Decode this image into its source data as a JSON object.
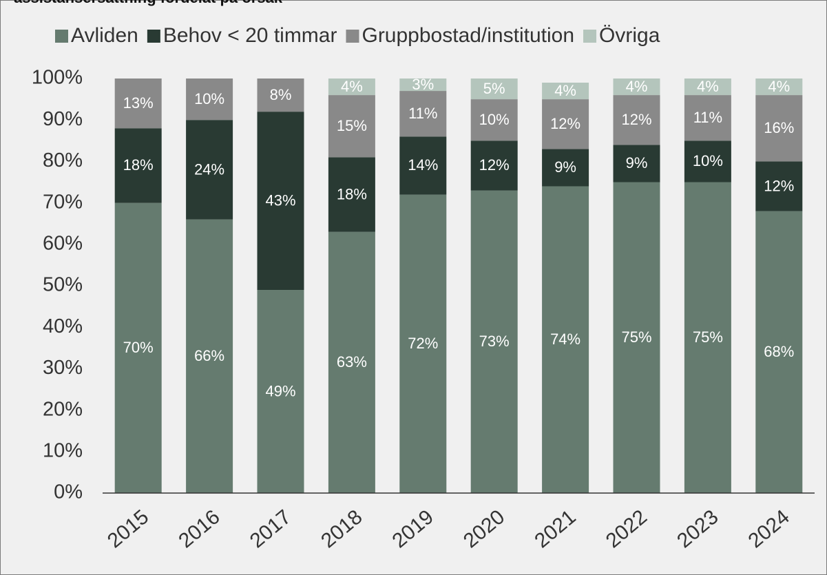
{
  "chart_data": {
    "type": "stacked_bar",
    "title": "assistansersättning fördelat på orsak",
    "categories": [
      "2015",
      "2016",
      "2017",
      "2018",
      "2019",
      "2020",
      "2021",
      "2022",
      "2023",
      "2024"
    ],
    "series": [
      {
        "name": "Avliden",
        "color": "#657b6f",
        "values": [
          70,
          66,
          49,
          63,
          72,
          73,
          74,
          75,
          75,
          68
        ],
        "value_labels": [
          "70%",
          "66%",
          "49%",
          "63%",
          "72%",
          "73%",
          "74%",
          "75%",
          "75%",
          "68%"
        ]
      },
      {
        "name": "Behov < 20 timmar",
        "color": "#293a33",
        "values": [
          18,
          24,
          43,
          18,
          14,
          12,
          9,
          9,
          10,
          12
        ],
        "value_labels": [
          "18%",
          "24%",
          "43%",
          "18%",
          "14%",
          "12%",
          "9%",
          "9%",
          "10%",
          "12%"
        ]
      },
      {
        "name": "Gruppbostad/institution",
        "color": "#898989",
        "values": [
          13,
          10,
          8,
          15,
          11,
          10,
          12,
          12,
          11,
          16
        ],
        "value_labels": [
          "13%",
          "10%",
          "8%",
          "15%",
          "11%",
          "10%",
          "12%",
          "12%",
          "11%",
          "16%"
        ]
      },
      {
        "name": "Övriga",
        "color": "#b4c5bc",
        "values": [
          null,
          null,
          null,
          4,
          3,
          5,
          4,
          4,
          4,
          4
        ],
        "value_labels": [
          null,
          null,
          null,
          "4%",
          "3%",
          "5%",
          "4%",
          "4%",
          "4%",
          "4%"
        ]
      }
    ],
    "ylim": [
      0,
      100
    ],
    "yticks": [
      {
        "value": 0,
        "label": "0%"
      },
      {
        "value": 10,
        "label": "10%"
      },
      {
        "value": 20,
        "label": "20%"
      },
      {
        "value": 30,
        "label": "30%"
      },
      {
        "value": 40,
        "label": "40%"
      },
      {
        "value": 50,
        "label": "50%"
      },
      {
        "value": 60,
        "label": "60%"
      },
      {
        "value": 70,
        "label": "70%"
      },
      {
        "value": 80,
        "label": "80%"
      },
      {
        "value": 90,
        "label": "90%"
      },
      {
        "value": 100,
        "label": "100%"
      }
    ],
    "legend": "top"
  }
}
